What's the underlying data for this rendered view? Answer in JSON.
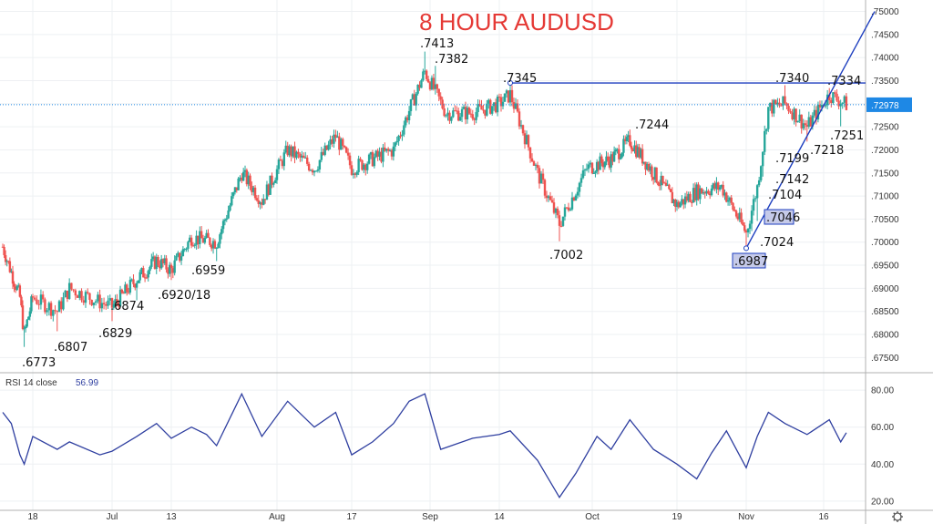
{
  "chart_data": [
    {
      "type": "candlestick",
      "title": "8 HOUR AUDUSD",
      "ylim": [
        0.6725,
        0.7505
      ],
      "y_ticks": [
        ".75000",
        ".74500",
        ".74000",
        ".73500",
        ".73000",
        ".72500",
        ".72000",
        ".71500",
        ".71000",
        ".70500",
        ".70000",
        ".69500",
        ".69000",
        ".68500",
        ".68000",
        ".67500"
      ],
      "x_ticks": [
        "18",
        "Jul",
        "13",
        "Aug",
        "17",
        "Sep",
        "14",
        "Oct",
        "19",
        "Nov",
        "16"
      ],
      "last_price": ".72978",
      "colors": {
        "up": "#26a69a",
        "down": "#ef5350",
        "trend": "#1e3fbf",
        "title": "#e53935",
        "price_badge": "#1e88e5"
      },
      "swing_points": [
        {
          "label": ".6773",
          "x": "Jun 16",
          "y": 0.6773
        },
        {
          "label": ".6807",
          "x": "Jun 22",
          "y": 0.6807
        },
        {
          "label": ".6829",
          "x": "Jul 1",
          "y": 0.6829
        },
        {
          "label": ".6874",
          "x": "Jul 6",
          "y": 0.6874
        },
        {
          "label": ".6920/18",
          "x": "Jul 13",
          "y": 0.6918
        },
        {
          "label": ".6959",
          "x": "Jul 22",
          "y": 0.6959
        },
        {
          "label": ".7413",
          "x": "Aug 31",
          "y": 0.7413
        },
        {
          "label": ".7382",
          "x": "Sep 2",
          "y": 0.7382
        },
        {
          "label": ".7345",
          "x": "Sep 16",
          "y": 0.7345
        },
        {
          "label": ".7002",
          "x": "Sep 25",
          "y": 0.7002
        },
        {
          "label": ".7244",
          "x": "Oct 9",
          "y": 0.7244
        },
        {
          "label": ".6987",
          "x": "Nov 2",
          "y": 0.6987
        },
        {
          "label": ".7024",
          "x": "Nov 3",
          "y": 0.7024
        },
        {
          "label": ".7046",
          "x": "Nov 4",
          "y": 0.7046
        },
        {
          "label": ".7104",
          "x": "Nov 4",
          "y": 0.7104
        },
        {
          "label": ".7142",
          "x": "Nov 5",
          "y": 0.7142
        },
        {
          "label": ".7199",
          "x": "Nov 5",
          "y": 0.7199
        },
        {
          "label": ".7340",
          "x": "Nov 9",
          "y": 0.734
        },
        {
          "label": ".7218",
          "x": "Nov 13",
          "y": 0.7218
        },
        {
          "label": ".7334",
          "x": "Nov 17",
          "y": 0.7334
        },
        {
          "label": ".7251",
          "x": "Nov 19",
          "y": 0.7251
        }
      ],
      "close_path": [
        {
          "x": "Jun 11",
          "y": 0.699
        },
        {
          "x": "Jun 15",
          "y": 0.688
        },
        {
          "x": "Jun 16",
          "y": 0.68
        },
        {
          "x": "Jun 18",
          "y": 0.688
        },
        {
          "x": "Jun 22",
          "y": 0.685
        },
        {
          "x": "Jun 24",
          "y": 0.69
        },
        {
          "x": "Jun 29",
          "y": 0.687
        },
        {
          "x": "Jul 1",
          "y": 0.686
        },
        {
          "x": "Jul 6",
          "y": 0.692
        },
        {
          "x": "Jul 10",
          "y": 0.696
        },
        {
          "x": "Jul 13",
          "y": 0.694
        },
        {
          "x": "Jul 17",
          "y": 0.701
        },
        {
          "x": "Jul 22",
          "y": 0.7
        },
        {
          "x": "Jul 27",
          "y": 0.715
        },
        {
          "x": "Jul 31",
          "y": 0.709
        },
        {
          "x": "Aug 5",
          "y": 0.72
        },
        {
          "x": "Aug 10",
          "y": 0.716
        },
        {
          "x": "Aug 14",
          "y": 0.723
        },
        {
          "x": "Aug 17",
          "y": 0.716
        },
        {
          "x": "Aug 21",
          "y": 0.718
        },
        {
          "x": "Aug 25",
          "y": 0.72
        },
        {
          "x": "Aug 31",
          "y": 0.737
        },
        {
          "x": "Sep 4",
          "y": 0.728
        },
        {
          "x": "Sep 9",
          "y": 0.728
        },
        {
          "x": "Sep 14",
          "y": 0.73
        },
        {
          "x": "Sep 16",
          "y": 0.732
        },
        {
          "x": "Sep 21",
          "y": 0.715
        },
        {
          "x": "Sep 25",
          "y": 0.704
        },
        {
          "x": "Sep 30",
          "y": 0.716
        },
        {
          "x": "Oct 5",
          "y": 0.718
        },
        {
          "x": "Oct 9",
          "y": 0.722
        },
        {
          "x": "Oct 14",
          "y": 0.715
        },
        {
          "x": "Oct 19",
          "y": 0.708
        },
        {
          "x": "Oct 23",
          "y": 0.711
        },
        {
          "x": "Oct 28",
          "y": 0.712
        },
        {
          "x": "Nov 2",
          "y": 0.702
        },
        {
          "x": "Nov 4",
          "y": 0.712
        },
        {
          "x": "Nov 6",
          "y": 0.729
        },
        {
          "x": "Nov 9",
          "y": 0.73
        },
        {
          "x": "Nov 13",
          "y": 0.725
        },
        {
          "x": "Nov 17",
          "y": 0.732
        },
        {
          "x": "Nov 20",
          "y": 0.7298
        }
      ],
      "trendlines": [
        {
          "name": "resistance",
          "from": {
            "x": "Sep 16",
            "y": 0.7345
          },
          "to": {
            "x": "Nov 20",
            "y": 0.7345
          }
        },
        {
          "name": "support-trend",
          "from": {
            "x": "Nov 2",
            "y": 0.6987
          },
          "to": {
            "x": "Nov 25",
            "y": 0.75
          }
        }
      ]
    },
    {
      "type": "line",
      "label": "RSI 14 close",
      "current_value": "56.99",
      "ylim": [
        15,
        85
      ],
      "y_ticks": [
        "80.00",
        "60.00",
        "40.00",
        "20.00"
      ],
      "series": [
        {
          "x": "Jun 11",
          "y": 68
        },
        {
          "x": "Jun 13",
          "y": 62
        },
        {
          "x": "Jun 15",
          "y": 45
        },
        {
          "x": "Jun 16",
          "y": 40
        },
        {
          "x": "Jun 18",
          "y": 55
        },
        {
          "x": "Jun 22",
          "y": 48
        },
        {
          "x": "Jun 24",
          "y": 52
        },
        {
          "x": "Jun 29",
          "y": 45
        },
        {
          "x": "Jul 1",
          "y": 47
        },
        {
          "x": "Jul 6",
          "y": 55
        },
        {
          "x": "Jul 10",
          "y": 62
        },
        {
          "x": "Jul 13",
          "y": 54
        },
        {
          "x": "Jul 17",
          "y": 60
        },
        {
          "x": "Jul 20",
          "y": 56
        },
        {
          "x": "Jul 22",
          "y": 50
        },
        {
          "x": "Jul 27",
          "y": 78
        },
        {
          "x": "Jul 31",
          "y": 55
        },
        {
          "x": "Aug 5",
          "y": 74
        },
        {
          "x": "Aug 10",
          "y": 60
        },
        {
          "x": "Aug 14",
          "y": 68
        },
        {
          "x": "Aug 17",
          "y": 45
        },
        {
          "x": "Aug 21",
          "y": 52
        },
        {
          "x": "Aug 25",
          "y": 62
        },
        {
          "x": "Aug 28",
          "y": 74
        },
        {
          "x": "Aug 31",
          "y": 78
        },
        {
          "x": "Sep 3",
          "y": 48
        },
        {
          "x": "Sep 9",
          "y": 54
        },
        {
          "x": "Sep 14",
          "y": 56
        },
        {
          "x": "Sep 16",
          "y": 58
        },
        {
          "x": "Sep 21",
          "y": 42
        },
        {
          "x": "Sep 25",
          "y": 22
        },
        {
          "x": "Sep 28",
          "y": 35
        },
        {
          "x": "Oct 2",
          "y": 55
        },
        {
          "x": "Oct 5",
          "y": 48
        },
        {
          "x": "Oct 9",
          "y": 64
        },
        {
          "x": "Oct 14",
          "y": 48
        },
        {
          "x": "Oct 19",
          "y": 40
        },
        {
          "x": "Oct 23",
          "y": 32
        },
        {
          "x": "Oct 26",
          "y": 46
        },
        {
          "x": "Oct 29",
          "y": 58
        },
        {
          "x": "Nov 2",
          "y": 38
        },
        {
          "x": "Nov 4",
          "y": 55
        },
        {
          "x": "Nov 6",
          "y": 68
        },
        {
          "x": "Nov 9",
          "y": 62
        },
        {
          "x": "Nov 13",
          "y": 56
        },
        {
          "x": "Nov 17",
          "y": 64
        },
        {
          "x": "Nov 19",
          "y": 52
        },
        {
          "x": "Nov 20",
          "y": 57
        }
      ]
    }
  ]
}
